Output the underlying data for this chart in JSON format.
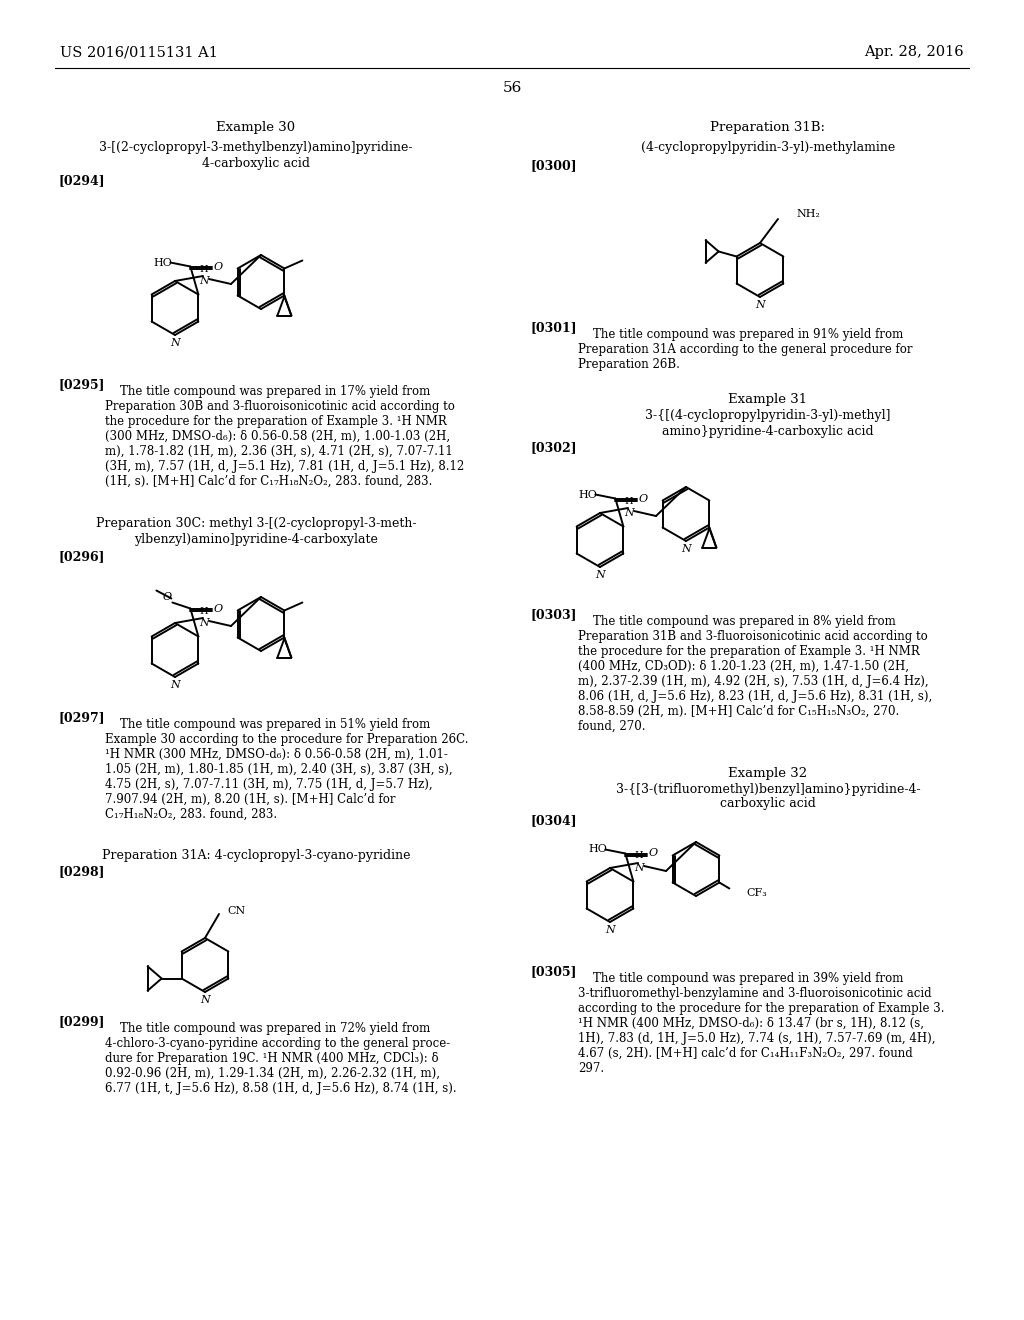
{
  "background_color": "#ffffff",
  "header_left": "US 2016/0115131 A1",
  "header_right": "Apr. 28, 2016",
  "page_number": "56"
}
